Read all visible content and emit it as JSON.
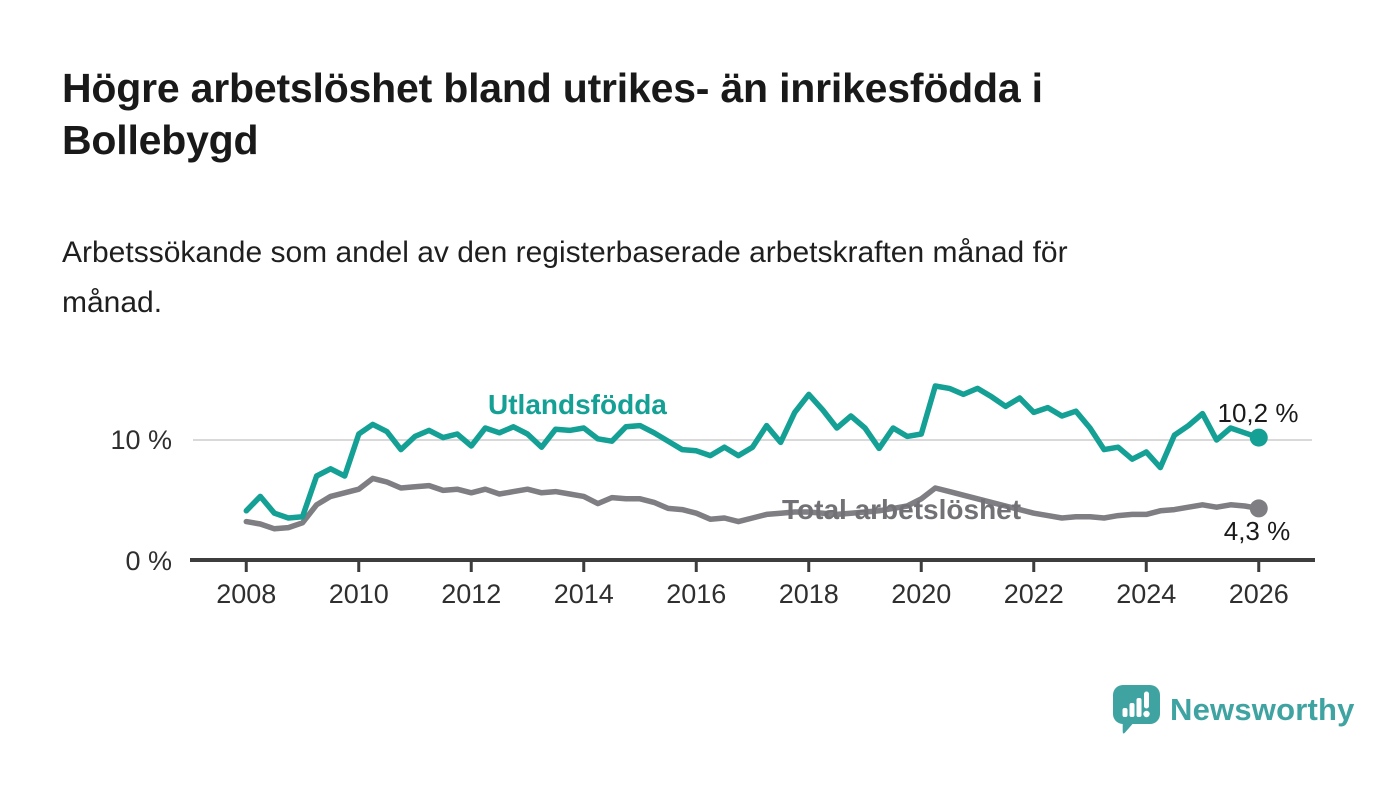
{
  "title": {
    "lines": [
      "Högre arbetslöshet bland utrikes- än inrikesfödda i",
      "Bollebygd"
    ]
  },
  "subtitle": {
    "lines": [
      "Arbetssökande som andel av den registerbaserade arbetskraften månad för",
      "månad."
    ]
  },
  "chart_data": {
    "type": "line",
    "title": "Högre arbetslöshet bland utrikes- än inrikesfödda i Bollebygd",
    "subtitle": "Arbetssökande som andel av den registerbaserade arbetskraften månad för månad.",
    "xlabel": "",
    "ylabel": "",
    "unit": "%",
    "x_start": 2008.0,
    "x_step": 0.25,
    "xlim": [
      2007.0,
      2027.0
    ],
    "ylim": [
      0,
      16
    ],
    "grid_values": [
      10
    ],
    "x_tick_labels": [
      "2008",
      "2010",
      "2012",
      "2014",
      "2016",
      "2018",
      "2020",
      "2022",
      "2024",
      "2026"
    ],
    "y_tick_labels": [
      "0 %",
      "10 %"
    ],
    "legend_position": "inline-labels",
    "series": [
      {
        "name": "Utlandsfödda",
        "color": "#14a094",
        "end_label": "10,2 %",
        "end_value": 10.2,
        "values": [
          4.1,
          5.3,
          3.9,
          3.5,
          3.6,
          7.0,
          7.6,
          7.0,
          10.5,
          11.3,
          10.7,
          9.2,
          10.3,
          10.8,
          10.2,
          10.5,
          9.5,
          11.0,
          10.6,
          11.1,
          10.5,
          9.4,
          10.9,
          10.8,
          11.0,
          10.1,
          9.9,
          11.1,
          11.2,
          10.6,
          9.9,
          9.2,
          9.1,
          8.7,
          9.4,
          8.7,
          9.4,
          11.2,
          9.8,
          12.3,
          13.8,
          12.5,
          11.0,
          12.0,
          11.0,
          9.3,
          11.0,
          10.3,
          10.5,
          14.5,
          14.3,
          13.8,
          14.3,
          13.6,
          12.8,
          13.5,
          12.3,
          12.7,
          12.0,
          12.4,
          11.0,
          9.2,
          9.4,
          8.4,
          9.0,
          7.7,
          10.4,
          11.2,
          12.2,
          10.0,
          11.0,
          10.6,
          10.2
        ]
      },
      {
        "name": "Total arbetslöshet",
        "color": "#7e7e83",
        "end_label": "4,3 %",
        "end_value": 4.3,
        "values": [
          3.2,
          3.0,
          2.6,
          2.7,
          3.1,
          4.6,
          5.3,
          5.6,
          5.9,
          6.8,
          6.5,
          6.0,
          6.1,
          6.2,
          5.8,
          5.9,
          5.6,
          5.9,
          5.5,
          5.7,
          5.9,
          5.6,
          5.7,
          5.5,
          5.3,
          4.7,
          5.2,
          5.1,
          5.1,
          4.8,
          4.3,
          4.2,
          3.9,
          3.4,
          3.5,
          3.2,
          3.5,
          3.8,
          3.9,
          4.0,
          4.0,
          3.9,
          3.8,
          3.9,
          4.0,
          4.1,
          4.3,
          4.5,
          5.1,
          6.0,
          5.7,
          5.4,
          5.1,
          4.8,
          4.5,
          4.2,
          3.9,
          3.7,
          3.5,
          3.6,
          3.6,
          3.5,
          3.7,
          3.8,
          3.8,
          4.1,
          4.2,
          4.4,
          4.6,
          4.4,
          4.6,
          4.5,
          4.3
        ]
      }
    ]
  },
  "branding": {
    "wordmark": "Newsworthy",
    "logo_icon": "newsworthy-speech-bubble-bar-chart-icon",
    "color": "#3fa3a1"
  },
  "colors": {
    "background": "#ffffff",
    "title_text": "#191919",
    "axis": "#3d3d3d",
    "gridline": "#d9d9d9",
    "tick_text": "#2f2f2f",
    "utlandsfodda_line": "#14a094",
    "total_line": "#7e7e83",
    "value_label_text": "#1a1a1a",
    "brand_teal": "#3fa3a1"
  }
}
